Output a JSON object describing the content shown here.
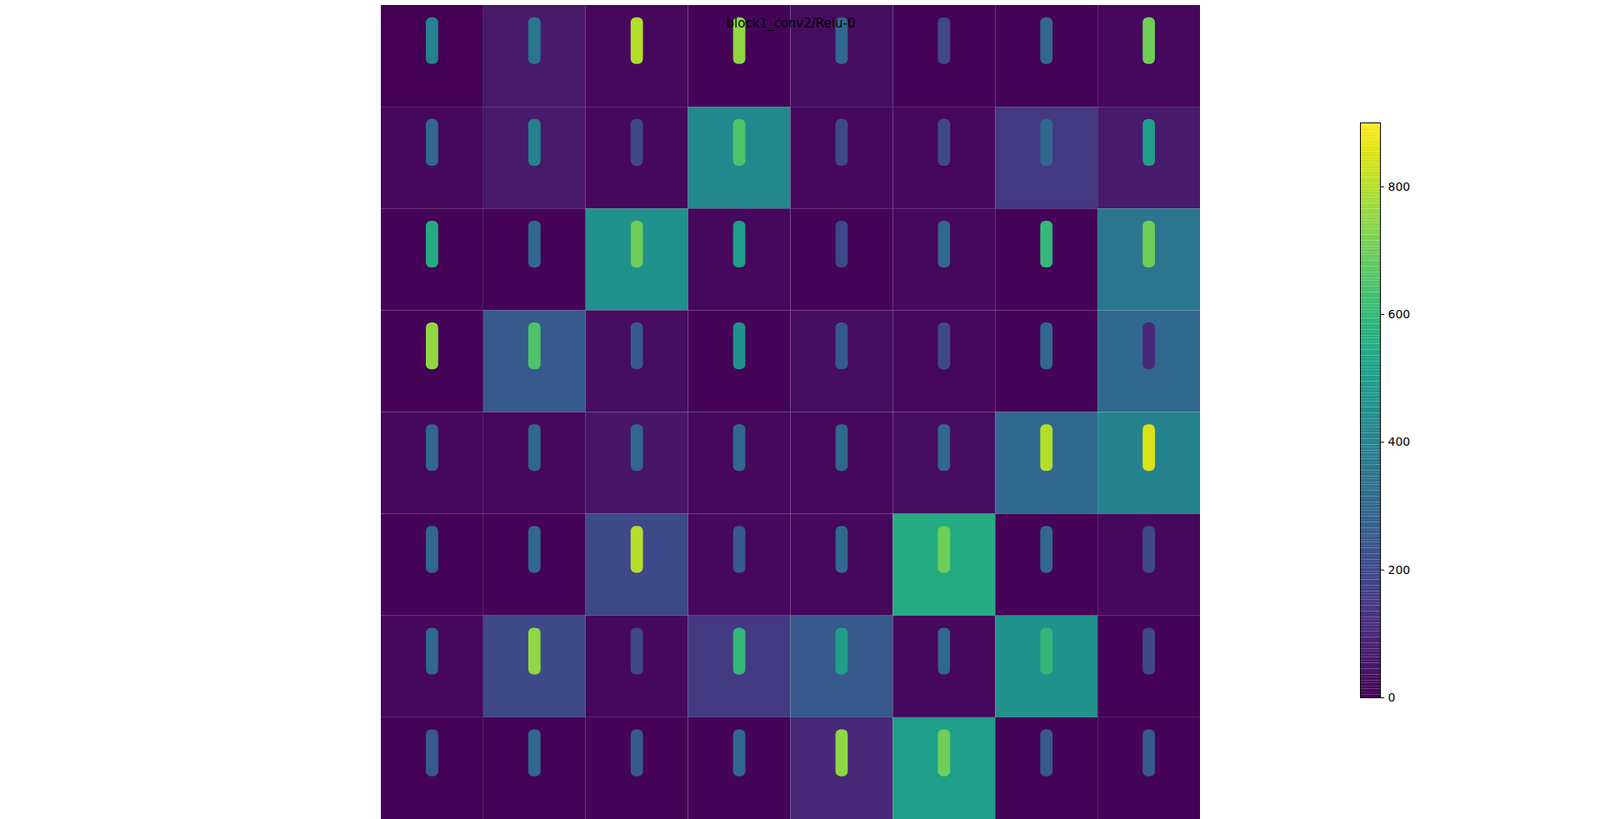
{
  "chart_data": {
    "type": "heatmap",
    "title": "block1_conv2/Relu-0",
    "color": "viridis",
    "tick_labels": false,
    "background": [
      [
        0,
        60,
        20,
        10,
        30,
        10,
        10,
        20
      ],
      [
        20,
        60,
        20,
        420,
        20,
        20,
        150,
        60
      ],
      [
        10,
        10,
        450,
        20,
        10,
        20,
        10,
        350
      ],
      [
        10,
        250,
        30,
        10,
        30,
        20,
        10,
        300
      ],
      [
        20,
        20,
        50,
        20,
        20,
        30,
        300,
        400
      ],
      [
        10,
        10,
        200,
        20,
        20,
        550,
        10,
        20
      ],
      [
        20,
        200,
        20,
        150,
        250,
        20,
        450,
        10
      ],
      [
        10,
        10,
        10,
        10,
        100,
        500,
        10,
        10
      ]
    ],
    "peak": [
      [
        400,
        350,
        800,
        750,
        300,
        200,
        300,
        700
      ],
      [
        300,
        400,
        200,
        650,
        200,
        200,
        300,
        500
      ],
      [
        550,
        300,
        700,
        500,
        200,
        300,
        600,
        700
      ],
      [
        750,
        650,
        250,
        450,
        250,
        200,
        300,
        100
      ],
      [
        300,
        300,
        300,
        300,
        300,
        300,
        800,
        850
      ],
      [
        300,
        300,
        800,
        250,
        300,
        700,
        300,
        200
      ],
      [
        300,
        750,
        200,
        600,
        500,
        300,
        600,
        200
      ],
      [
        250,
        300,
        250,
        300,
        750,
        700,
        250,
        250
      ]
    ],
    "colorbar_range": [
      0,
      900
    ],
    "colorbar_ticks": [
      0,
      200,
      400,
      600,
      800
    ]
  }
}
